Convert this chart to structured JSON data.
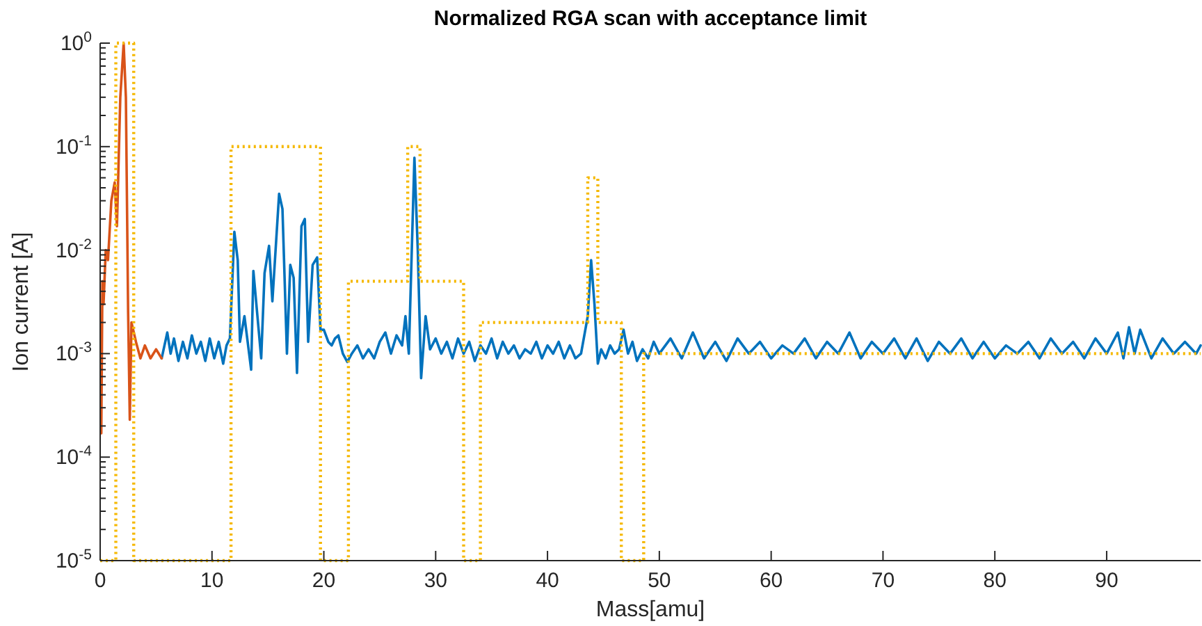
{
  "chart_data": {
    "type": "line",
    "title": "Normalized RGA scan with acceptance limit",
    "xlabel": "Mass[amu]",
    "ylabel": "Ion current [A]",
    "log": "y",
    "grid": false,
    "xlim": [
      0,
      98.4
    ],
    "ylim": [
      1e-05,
      1
    ],
    "xticks": [
      0,
      10,
      20,
      30,
      40,
      50,
      60,
      70,
      80,
      90
    ],
    "yticks": [
      {
        "value": 1e-05,
        "label": "10$^{-5}$"
      },
      {
        "value": 2e-05,
        "label": null
      },
      {
        "value": 3e-05,
        "label": null
      },
      {
        "value": 4e-05,
        "label": null
      },
      {
        "value": 5e-05,
        "label": null
      },
      {
        "value": 6e-05,
        "label": null
      },
      {
        "value": 7e-05,
        "label": null
      },
      {
        "value": 8e-05,
        "label": null
      },
      {
        "value": 9e-05,
        "label": null
      },
      {
        "value": 0.0001,
        "label": "10$^{-4}$"
      },
      {
        "value": 0.0002,
        "label": null
      },
      {
        "value": 0.0003,
        "label": null
      },
      {
        "value": 0.0004,
        "label": null
      },
      {
        "value": 0.0005,
        "label": null
      },
      {
        "value": 0.0006,
        "label": null
      },
      {
        "value": 0.0007,
        "label": null
      },
      {
        "value": 0.0008,
        "label": null
      },
      {
        "value": 0.0009,
        "label": null
      },
      {
        "value": 0.001,
        "label": "10$^{-3}$"
      },
      {
        "value": 0.002,
        "label": null
      },
      {
        "value": 0.003,
        "label": null
      },
      {
        "value": 0.004,
        "label": null
      },
      {
        "value": 0.005,
        "label": null
      },
      {
        "value": 0.006,
        "label": null
      },
      {
        "value": 0.007,
        "label": null
      },
      {
        "value": 0.008,
        "label": null
      },
      {
        "value": 0.009,
        "label": null
      },
      {
        "value": 0.01,
        "label": "10$^{-2}$"
      },
      {
        "value": 0.02,
        "label": null
      },
      {
        "value": 0.03,
        "label": null
      },
      {
        "value": 0.04,
        "label": null
      },
      {
        "value": 0.05,
        "label": null
      },
      {
        "value": 0.06,
        "label": null
      },
      {
        "value": 0.07,
        "label": null
      },
      {
        "value": 0.08,
        "label": null
      },
      {
        "value": 0.09,
        "label": null
      },
      {
        "value": 0.1,
        "label": "10$^{-1}$"
      },
      {
        "value": 0.2,
        "label": null
      },
      {
        "value": 0.3,
        "label": null
      },
      {
        "value": 0.4,
        "label": null
      },
      {
        "value": 0.5,
        "label": null
      },
      {
        "value": 0.6,
        "label": null
      },
      {
        "value": 0.7,
        "label": null
      },
      {
        "value": 0.8,
        "label": null
      },
      {
        "value": 0.9,
        "label": null
      },
      {
        "value": 1,
        "label": "10$^{0}$"
      }
    ],
    "series": [
      {
        "color": "#0072bd",
        "line_style": "solid",
        "x": [
          5.5,
          6,
          6.3,
          6.6,
          7,
          7.4,
          7.8,
          8.2,
          8.6,
          9,
          9.4,
          9.8,
          10.2,
          10.6,
          11,
          11.3,
          11.6,
          12.0,
          12.3,
          12.5,
          12.9,
          13.5,
          13.7,
          14.4,
          14.7,
          15.1,
          15.4,
          16.0,
          16.3,
          16.7,
          17.0,
          17.3,
          17.6,
          18.0,
          18.3,
          18.6,
          19.0,
          19.4,
          19.7,
          20.0,
          20.4,
          20.7,
          21.0,
          21.3,
          21.7,
          22.1,
          22.5,
          23,
          23.5,
          24,
          24.5,
          25,
          25.5,
          26,
          26.5,
          27,
          27.3,
          27.6,
          28.1,
          28.4,
          28.7,
          29.1,
          29.5,
          30,
          30.5,
          31,
          31.5,
          32,
          32.5,
          33,
          33.5,
          34,
          34.5,
          35,
          35.5,
          36,
          36.5,
          37,
          37.5,
          38,
          38.5,
          39,
          39.5,
          40,
          40.5,
          41,
          41.5,
          42,
          42.5,
          43,
          43.6,
          43.9,
          44.2,
          44.5,
          44.8,
          45.2,
          45.6,
          46,
          46.4,
          46.8,
          47.2,
          47.6,
          48,
          48.5,
          49,
          49.5,
          50,
          51,
          52,
          53,
          54,
          55,
          56,
          57,
          58,
          59,
          60,
          61,
          62,
          63,
          64,
          65,
          66,
          67,
          68,
          69,
          70,
          71,
          72,
          73,
          74,
          75,
          76,
          77,
          78,
          79,
          80,
          81,
          82,
          83,
          84,
          85,
          86,
          87,
          88,
          89,
          90,
          91,
          91.5,
          92,
          92.5,
          93,
          94,
          95,
          96,
          97,
          98,
          98.4
        ],
        "values": [
          0.0009,
          0.0016,
          0.001,
          0.0014,
          0.00085,
          0.0013,
          0.0009,
          0.0015,
          0.001,
          0.0013,
          0.00085,
          0.0014,
          0.0009,
          0.0013,
          0.0008,
          0.0012,
          0.0014,
          0.015,
          0.008,
          0.0013,
          0.0023,
          0.0007,
          0.0063,
          0.0009,
          0.006,
          0.011,
          0.0032,
          0.035,
          0.025,
          0.001,
          0.0072,
          0.0054,
          0.00065,
          0.017,
          0.02,
          0.0013,
          0.0072,
          0.0085,
          0.0017,
          0.0017,
          0.0013,
          0.0012,
          0.0014,
          0.0015,
          0.001,
          0.00083,
          0.001,
          0.0012,
          0.0009,
          0.0011,
          0.0009,
          0.0013,
          0.0016,
          0.001,
          0.0015,
          0.0012,
          0.0023,
          0.001,
          0.078,
          0.01,
          0.00058,
          0.0023,
          0.0011,
          0.0014,
          0.001,
          0.0013,
          0.0009,
          0.0014,
          0.001,
          0.0013,
          0.00085,
          0.0012,
          0.001,
          0.0014,
          0.0009,
          0.0013,
          0.001,
          0.0012,
          0.0009,
          0.0011,
          0.001,
          0.0013,
          0.0009,
          0.0012,
          0.001,
          0.0013,
          0.0009,
          0.0012,
          0.0009,
          0.001,
          0.0023,
          0.008,
          0.003,
          0.0008,
          0.0011,
          0.0009,
          0.0012,
          0.001,
          0.0011,
          0.0017,
          0.001,
          0.0013,
          0.00085,
          0.0011,
          0.0009,
          0.0013,
          0.001,
          0.0014,
          0.0009,
          0.0016,
          0.0009,
          0.0013,
          0.00085,
          0.0014,
          0.001,
          0.0013,
          0.0009,
          0.0012,
          0.001,
          0.0014,
          0.0009,
          0.0013,
          0.001,
          0.0016,
          0.0009,
          0.0013,
          0.001,
          0.0014,
          0.0009,
          0.0014,
          0.00085,
          0.0013,
          0.001,
          0.0014,
          0.0009,
          0.0013,
          0.0009,
          0.0012,
          0.001,
          0.0013,
          0.0009,
          0.0014,
          0.001,
          0.0013,
          0.0009,
          0.0014,
          0.001,
          0.0016,
          0.0009,
          0.0018,
          0.001,
          0.0017,
          0.0009,
          0.0014,
          0.001,
          0.0013,
          0.001,
          0.0012
        ]
      },
      {
        "color": "#d95319",
        "line_style": "solid",
        "x": [
          0.1,
          0.2,
          0.3,
          0.5,
          0.7,
          1.0,
          1.3,
          1.5,
          1.8,
          2.1,
          2.3,
          2.5,
          2.65,
          2.8,
          3.2,
          3.6,
          4.0,
          4.5,
          5.0,
          5.5
        ],
        "values": [
          0.00017,
          0.005,
          0.003,
          0.01,
          0.008,
          0.03,
          0.045,
          0.017,
          0.3,
          1,
          0.3,
          0.0025,
          0.00023,
          0.002,
          0.0013,
          0.0009,
          0.0012,
          0.0009,
          0.0011,
          0.0009
        ]
      },
      {
        "color": "#f5b800",
        "line_style": "dotted",
        "x": [
          0,
          1.4,
          1.4,
          3.0,
          3.0,
          11.7,
          11.7,
          19.7,
          19.7,
          22.2,
          22.2,
          27.5,
          27.5,
          28.6,
          28.6,
          32.5,
          32.5,
          34.0,
          34.0,
          43.6,
          43.6,
          44.5,
          44.5,
          46.6,
          46.6,
          48.6,
          48.6,
          98.4
        ],
        "values": [
          1e-05,
          1e-05,
          1,
          1,
          1e-05,
          1e-05,
          0.1,
          0.1,
          1e-05,
          1e-05,
          0.005,
          0.005,
          0.1,
          0.1,
          0.005,
          0.005,
          1e-05,
          1e-05,
          0.002,
          0.002,
          0.05,
          0.05,
          0.002,
          0.002,
          1e-05,
          1e-05,
          0.001,
          0.001
        ]
      }
    ]
  }
}
